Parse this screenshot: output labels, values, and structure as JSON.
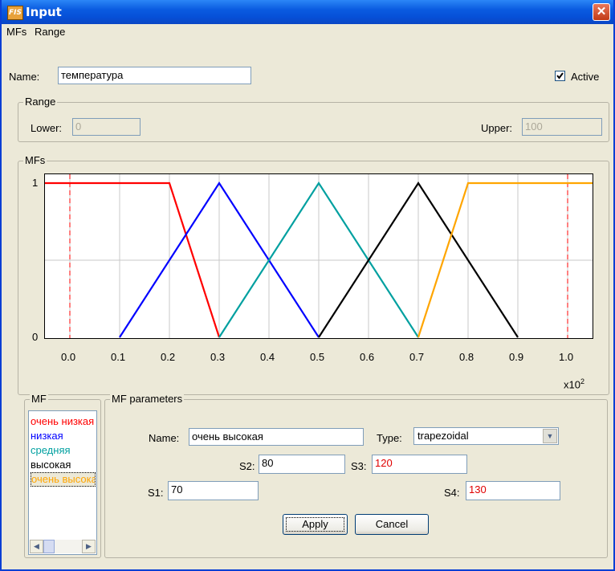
{
  "window": {
    "title": "Input",
    "app_icon": "FIS"
  },
  "menu": {
    "items": [
      "MFs",
      "Range"
    ]
  },
  "name_label": "Name:",
  "name_value": "температура",
  "active": {
    "label": "Active",
    "checked": true
  },
  "range": {
    "title": "Range",
    "lower_label": "Lower:",
    "lower_value": "0",
    "upper_label": "Upper:",
    "upper_value": "100"
  },
  "mfs_group": {
    "title": "MFs"
  },
  "chart_data": {
    "type": "line",
    "xlim": [
      -0.05,
      1.05
    ],
    "ylim": [
      0,
      1
    ],
    "x_ticks": [
      "0.0",
      "0.1",
      "0.2",
      "0.3",
      "0.4",
      "0.5",
      "0.6",
      "0.7",
      "0.8",
      "0.9",
      "1.0"
    ],
    "y_ticks": [
      "0",
      "1"
    ],
    "x_multiplier": "x10",
    "x_multiplier_exp": "2",
    "range_markers": [
      0.0,
      1.0
    ],
    "grid": true,
    "series": [
      {
        "name": "очень низкая",
        "color": "#ff0000",
        "x": [
          -0.05,
          0.2,
          0.3
        ],
        "y": [
          1,
          1,
          0
        ]
      },
      {
        "name": "низкая",
        "color": "#0000ff",
        "x": [
          0.1,
          0.3,
          0.5
        ],
        "y": [
          0,
          1,
          0
        ]
      },
      {
        "name": "средняя",
        "color": "#00a0a0",
        "x": [
          0.3,
          0.5,
          0.7
        ],
        "y": [
          0,
          1,
          0
        ]
      },
      {
        "name": "высокая",
        "color": "#000000",
        "x": [
          0.5,
          0.7,
          0.9
        ],
        "y": [
          0,
          1,
          0
        ]
      },
      {
        "name": "очень высокая",
        "color": "#ffa500",
        "x": [
          0.7,
          0.8,
          1.05
        ],
        "y": [
          0,
          1,
          1
        ]
      }
    ]
  },
  "mf_list": {
    "title": "MF",
    "items": [
      {
        "label": "очень низкая",
        "color": "#ff0000"
      },
      {
        "label": "низкая",
        "color": "#0000ff"
      },
      {
        "label": "средняя",
        "color": "#00a0a0"
      },
      {
        "label": "высокая",
        "color": "#000000"
      },
      {
        "label": "очень высокая",
        "color": "#ffa500"
      }
    ],
    "selected_index": 4
  },
  "mf_params": {
    "title": "MF parameters",
    "name_label": "Name:",
    "name_value": "очень высокая",
    "type_label": "Type:",
    "type_value": "trapezoidal",
    "s1_label": "S1:",
    "s1_value": "70",
    "s2_label": "S2:",
    "s2_value": "80",
    "s3_label": "S3:",
    "s3_value": "120",
    "s4_label": "S4:",
    "s4_value": "130"
  },
  "buttons": {
    "apply": "Apply",
    "cancel": "Cancel"
  }
}
